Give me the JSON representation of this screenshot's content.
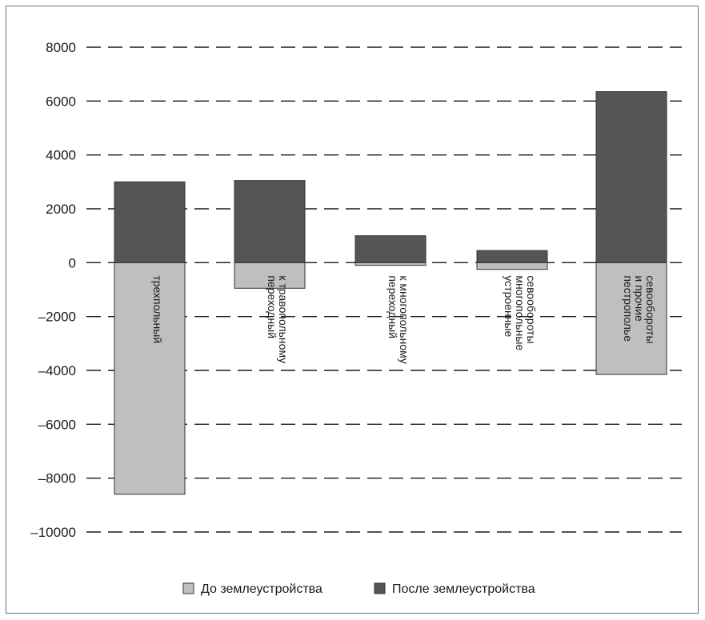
{
  "chart_data": {
    "type": "bar",
    "stacked": true,
    "categories": [
      [
        "трехпольный"
      ],
      [
        "переходный",
        "к травопольному"
      ],
      [
        "переходный",
        "к многопольному"
      ],
      [
        "устроенные",
        "многопольные",
        "севообороты"
      ],
      [
        "пестрополье",
        "и прочие",
        "севообороты"
      ]
    ],
    "series": [
      {
        "name": "До землеустройства",
        "color": "#bfbfbf",
        "values": [
          -8600,
          -950,
          -100,
          -250,
          -4150
        ]
      },
      {
        "name": "После землеустройства",
        "color": "#555555",
        "values": [
          3000,
          3050,
          1000,
          450,
          6350
        ]
      }
    ],
    "ylim": [
      -10000,
      8000
    ],
    "yticks": [
      8000,
      6000,
      4000,
      2000,
      0,
      -2000,
      -4000,
      -6000,
      -8000,
      -10000
    ],
    "ytick_labels": [
      "8000",
      "6000",
      "4000",
      "2000",
      "0",
      "–2000",
      "–4000",
      "–6000",
      "–8000",
      "–10000"
    ],
    "grid": "dashed horizontal",
    "legend_position": "bottom"
  }
}
